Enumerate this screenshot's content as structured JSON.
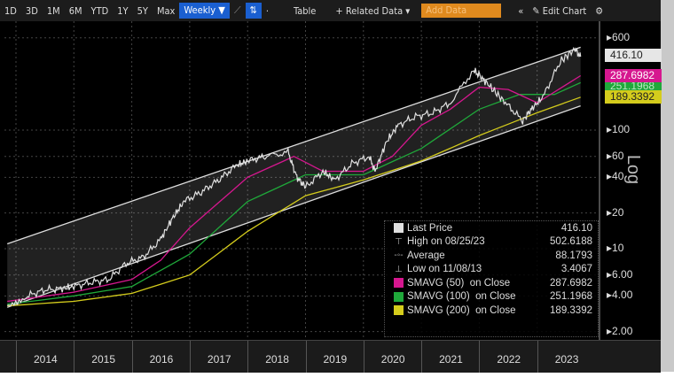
{
  "toolbar": {
    "items": [
      "1D",
      "3D",
      "1M",
      "6M",
      "YTD",
      "1Y",
      "5Y",
      "Max"
    ],
    "frequency": "Weekly ▼",
    "table": "Table",
    "related": "+ Related Data ▾",
    "add_data": "Add Data",
    "collapse": "«",
    "edit": "✎ Edit Chart",
    "settings": "⚙"
  },
  "chart_data": {
    "type": "line",
    "yscale": "log",
    "ylabel": "Log",
    "ylim": [
      1.8,
      700
    ],
    "xlim": [
      2013.8,
      2024.0
    ],
    "yticks": [
      "600",
      "100",
      "60",
      "40",
      "20",
      "10",
      "6.00",
      "4.00",
      "2.00"
    ],
    "ytick_values": [
      600,
      100,
      60,
      40,
      20,
      10,
      6,
      4,
      2
    ],
    "xticks": [
      "2014",
      "2015",
      "2016",
      "2017",
      "2018",
      "2019",
      "2020",
      "2021",
      "2022",
      "2023"
    ],
    "price": {
      "name": "Last Price",
      "color": "#e0e0e0",
      "x": [
        2013.85,
        2014.2,
        2014.5,
        2014.8,
        2015.0,
        2015.3,
        2015.6,
        2015.9,
        2016.2,
        2016.5,
        2016.7,
        2016.9,
        2017.2,
        2017.5,
        2017.8,
        2018.0,
        2018.3,
        2018.7,
        2018.85,
        2019.0,
        2019.3,
        2019.5,
        2019.8,
        2020.1,
        2020.2,
        2020.4,
        2020.6,
        2020.9,
        2021.2,
        2021.5,
        2021.9,
        2022.0,
        2022.2,
        2022.45,
        2022.75,
        2022.9,
        2023.1,
        2023.4,
        2023.65,
        2023.75
      ],
      "y": [
        3.4,
        4.0,
        4.5,
        4.6,
        4.8,
        5.2,
        5.5,
        7.5,
        8.5,
        12,
        18,
        25,
        30,
        38,
        50,
        55,
        60,
        65,
        40,
        33,
        45,
        38,
        52,
        60,
        45,
        80,
        110,
        130,
        140,
        170,
        320,
        290,
        230,
        170,
        120,
        150,
        190,
        380,
        480,
        416.1
      ]
    },
    "channel": {
      "upper": [
        [
          2013.85,
          11
        ],
        [
          2023.75,
          500
        ]
      ],
      "lower": [
        [
          2013.85,
          3.2
        ],
        [
          2023.75,
          160
        ]
      ]
    },
    "sma50": {
      "name": "SMAVG (50)  on Close",
      "color": "#d6178f",
      "x": [
        2013.85,
        2015,
        2016,
        2016.5,
        2017,
        2018,
        2018.8,
        2019.3,
        2020,
        2020.5,
        2021,
        2021.5,
        2022,
        2022.5,
        2023,
        2023.75
      ],
      "y": [
        3.6,
        4.3,
        5.5,
        8,
        15,
        40,
        60,
        45,
        45,
        60,
        110,
        150,
        230,
        220,
        170,
        287.6982
      ]
    },
    "sma100": {
      "name": "SMAVG (100)  on Close",
      "color": "#1fa83a",
      "x": [
        2013.85,
        2015,
        2016,
        2017,
        2018,
        2019,
        2020,
        2021,
        2022,
        2022.7,
        2023.3,
        2023.75
      ],
      "y": [
        3.4,
        4,
        4.8,
        9,
        25,
        42,
        42,
        70,
        150,
        200,
        200,
        251.1968
      ]
    },
    "sma200": {
      "name": "SMAVG (200)  on Close",
      "color": "#d4cc1c",
      "x": [
        2013.85,
        2015,
        2016,
        2017,
        2018,
        2019,
        2020,
        2021,
        2022,
        2023,
        2023.75
      ],
      "y": [
        3.3,
        3.6,
        4.2,
        6,
        14,
        28,
        38,
        55,
        90,
        140,
        189.3392
      ]
    }
  },
  "legend": {
    "rows": [
      {
        "label": "Last Price",
        "value": "416.10",
        "icon": "square",
        "color": "#e0e0e0"
      },
      {
        "label": "High on 08/25/23",
        "value": "502.6188",
        "icon": "high-marker"
      },
      {
        "label": "Average",
        "value": "88.1793",
        "icon": "average-marker"
      },
      {
        "label": "Low on 11/08/13",
        "value": "3.4067",
        "icon": "low-marker"
      },
      {
        "label": "SMAVG (50)  on Close",
        "value": "287.6982",
        "icon": "square",
        "color": "#d6178f"
      },
      {
        "label": "SMAVG (100)  on Close",
        "value": "251.1968",
        "icon": "square",
        "color": "#1fa83a"
      },
      {
        "label": "SMAVG (200)  on Close",
        "value": "189.3392",
        "icon": "square",
        "color": "#d4cc1c"
      }
    ]
  },
  "tags": {
    "last": "416.10",
    "sma50": "287.6982",
    "sma100": "251.1968",
    "sma200": "189.3392"
  }
}
